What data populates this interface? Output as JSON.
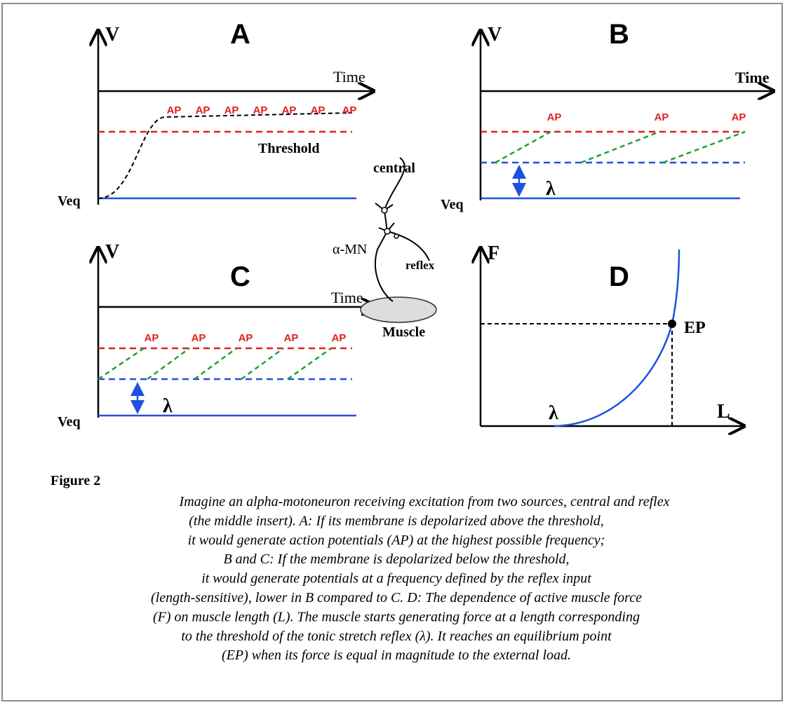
{
  "panels": [
    {
      "label": "A",
      "y_axis": "V",
      "x_axis": "Time",
      "ap": [
        "AP",
        "AP",
        "AP",
        "AP",
        "AP",
        "AP",
        "AP"
      ],
      "threshold": "Threshold",
      "veq": "Veq"
    },
    {
      "label": "B",
      "y_axis": "V",
      "x_axis": "Time",
      "ap": [
        "AP",
        "AP",
        "AP"
      ],
      "lambda": "λ",
      "veq": "Veq"
    },
    {
      "label": "C",
      "y_axis": "V",
      "x_axis": "Time",
      "ap": [
        "AP",
        "AP",
        "AP",
        "AP",
        "AP"
      ],
      "lambda": "λ",
      "veq": "Veq"
    },
    {
      "label": "D",
      "y_axis": "F",
      "x_axis": "L",
      "point": "EP",
      "lambda": "λ"
    }
  ],
  "insert": {
    "central": "central",
    "neuron": "α-MN",
    "reflex": "reflex",
    "muscle": "Muscle"
  },
  "caption": {
    "title": "Figure 2",
    "lines": [
      "Imagine an alpha-motoneuron receiving excitation from two sources, central and reflex",
      "(the middle insert). A: If its membrane is depolarized above the threshold,",
      "it would generate action potentials (AP) at the highest possible frequency;",
      "B and C: If the membrane is depolarized below the threshold,",
      "it would generate potentials at a frequency defined by the reflex input",
      "(length-sensitive), lower in B compared to C. D: The dependence of active muscle force",
      "(F) on muscle length (L). The muscle starts generating force at a length corresponding",
      "to the threshold of the tonic stretch reflex (λ). It reaches an equilibrium point",
      "(EP) when its force is equal in magnitude to the external load."
    ]
  }
}
